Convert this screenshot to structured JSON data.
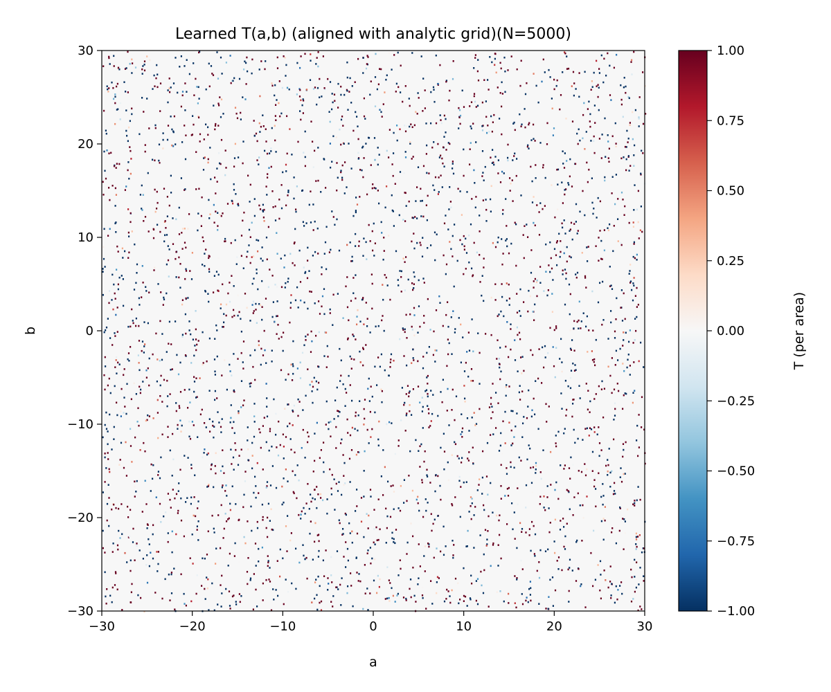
{
  "chart_data": {
    "type": "heatmap",
    "title": "Learned T(a,b) (aligned with analytic grid)(N=5000)",
    "xlabel": "a",
    "ylabel": "b",
    "xlim": [
      -30,
      30
    ],
    "ylim": [
      -30,
      30
    ],
    "x_ticks": [
      -30,
      -20,
      -10,
      0,
      10,
      20,
      30
    ],
    "y_ticks": [
      -30,
      -20,
      -10,
      0,
      10,
      20,
      30
    ],
    "x_tick_labels": [
      "−30",
      "−20",
      "−10",
      "0",
      "10",
      "20",
      "30"
    ],
    "y_tick_labels": [
      "−30",
      "−20",
      "−10",
      "0",
      "10",
      "20",
      "30"
    ],
    "colorbar": {
      "label": "T (per area)",
      "colormap": "RdBu_r",
      "range": [
        -1.0,
        1.0
      ],
      "ticks": [
        -1.0,
        -0.75,
        -0.5,
        -0.25,
        0.0,
        0.25,
        0.5,
        0.75,
        1.0
      ],
      "tick_labels": [
        "−1.00",
        "−0.75",
        "−0.50",
        "−0.25",
        "0.00",
        "0.25",
        "0.50",
        "0.75",
        "1.00"
      ]
    },
    "background_value": 0.0,
    "description_values": {
      "sample_count": 5000,
      "value_distribution": "sparse isolated cells with values mostly near −1 (dark blue) or +1 (dark red), with some intermediate values; rest of grid is 0"
    },
    "grid": false,
    "colors": {
      "neg_extreme": "#053061",
      "neg_mid": "#4393c3",
      "zero": "#f7f7f7",
      "pos_mid": "#f4a582",
      "pos_extreme": "#67001f"
    }
  }
}
